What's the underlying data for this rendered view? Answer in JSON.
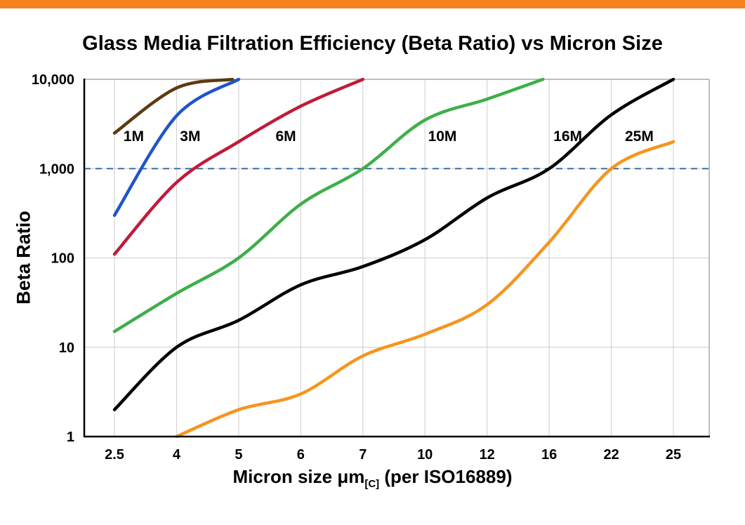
{
  "page": {
    "top_bar_color": "#f5821f"
  },
  "chart_data": {
    "type": "line",
    "title": "Glass Media Filtration Efficiency (Beta Ratio) vs Micron Size",
    "ylabel": "Beta Ratio",
    "xlabel_prefix": "Micron size μm",
    "xlabel_subscript": "[C]",
    "xlabel_suffix": " (per ISO16889)",
    "x_categories": [
      "2.5",
      "4",
      "5",
      "6",
      "7",
      "10",
      "12",
      "16",
      "22",
      "25"
    ],
    "y_scale": "log",
    "ylim": [
      1,
      10000
    ],
    "y_ticks": [
      {
        "value": 1,
        "label": "1"
      },
      {
        "value": 10,
        "label": "10"
      },
      {
        "value": 100,
        "label": "100"
      },
      {
        "value": 1000,
        "label": "1,000"
      },
      {
        "value": 10000,
        "label": "10,000"
      }
    ],
    "grid": true,
    "legend": "inline-labels",
    "reference_line": {
      "value": 1000,
      "color": "#3b6ea5",
      "style": "dashed"
    },
    "series": [
      {
        "name": "1M",
        "color": "#5e3a10",
        "label_pos": {
          "xi": 0.31,
          "y": 2300
        },
        "points": [
          [
            0,
            2500
          ],
          [
            1,
            8000
          ],
          [
            1.9,
            10000
          ]
        ]
      },
      {
        "name": "3M",
        "color": "#1f55c8",
        "label_pos": {
          "xi": 1.22,
          "y": 2300
        },
        "points": [
          [
            0,
            300
          ],
          [
            1,
            3900
          ],
          [
            2,
            10000
          ]
        ]
      },
      {
        "name": "6M",
        "color": "#c11a38",
        "label_pos": {
          "xi": 2.76,
          "y": 2300
        },
        "points": [
          [
            0,
            110
          ],
          [
            1,
            700
          ],
          [
            2,
            2000
          ],
          [
            3,
            5000
          ],
          [
            4,
            10000
          ]
        ]
      },
      {
        "name": "10M",
        "color": "#3daf4a",
        "label_pos": {
          "xi": 5.28,
          "y": 2300
        },
        "points": [
          [
            0,
            15
          ],
          [
            1,
            40
          ],
          [
            2,
            100
          ],
          [
            3,
            400
          ],
          [
            4,
            1000
          ],
          [
            5,
            3500
          ],
          [
            6,
            6000
          ],
          [
            6.9,
            10000
          ]
        ]
      },
      {
        "name": "16M",
        "color": "#000000",
        "label_pos": {
          "xi": 7.3,
          "y": 2300
        },
        "points": [
          [
            0,
            2
          ],
          [
            1,
            10
          ],
          [
            2,
            20
          ],
          [
            3,
            50
          ],
          [
            4,
            80
          ],
          [
            5,
            160
          ],
          [
            6,
            470
          ],
          [
            7,
            1000
          ],
          [
            8,
            4000
          ],
          [
            9,
            10000
          ]
        ]
      },
      {
        "name": "25M",
        "color": "#f7941e",
        "label_pos": {
          "xi": 8.45,
          "y": 2300
        },
        "points": [
          [
            1,
            1
          ],
          [
            2,
            2
          ],
          [
            3,
            3
          ],
          [
            4,
            8
          ],
          [
            5,
            14
          ],
          [
            6,
            30
          ],
          [
            7,
            150
          ],
          [
            8,
            1000
          ],
          [
            9,
            2000
          ]
        ]
      }
    ]
  }
}
